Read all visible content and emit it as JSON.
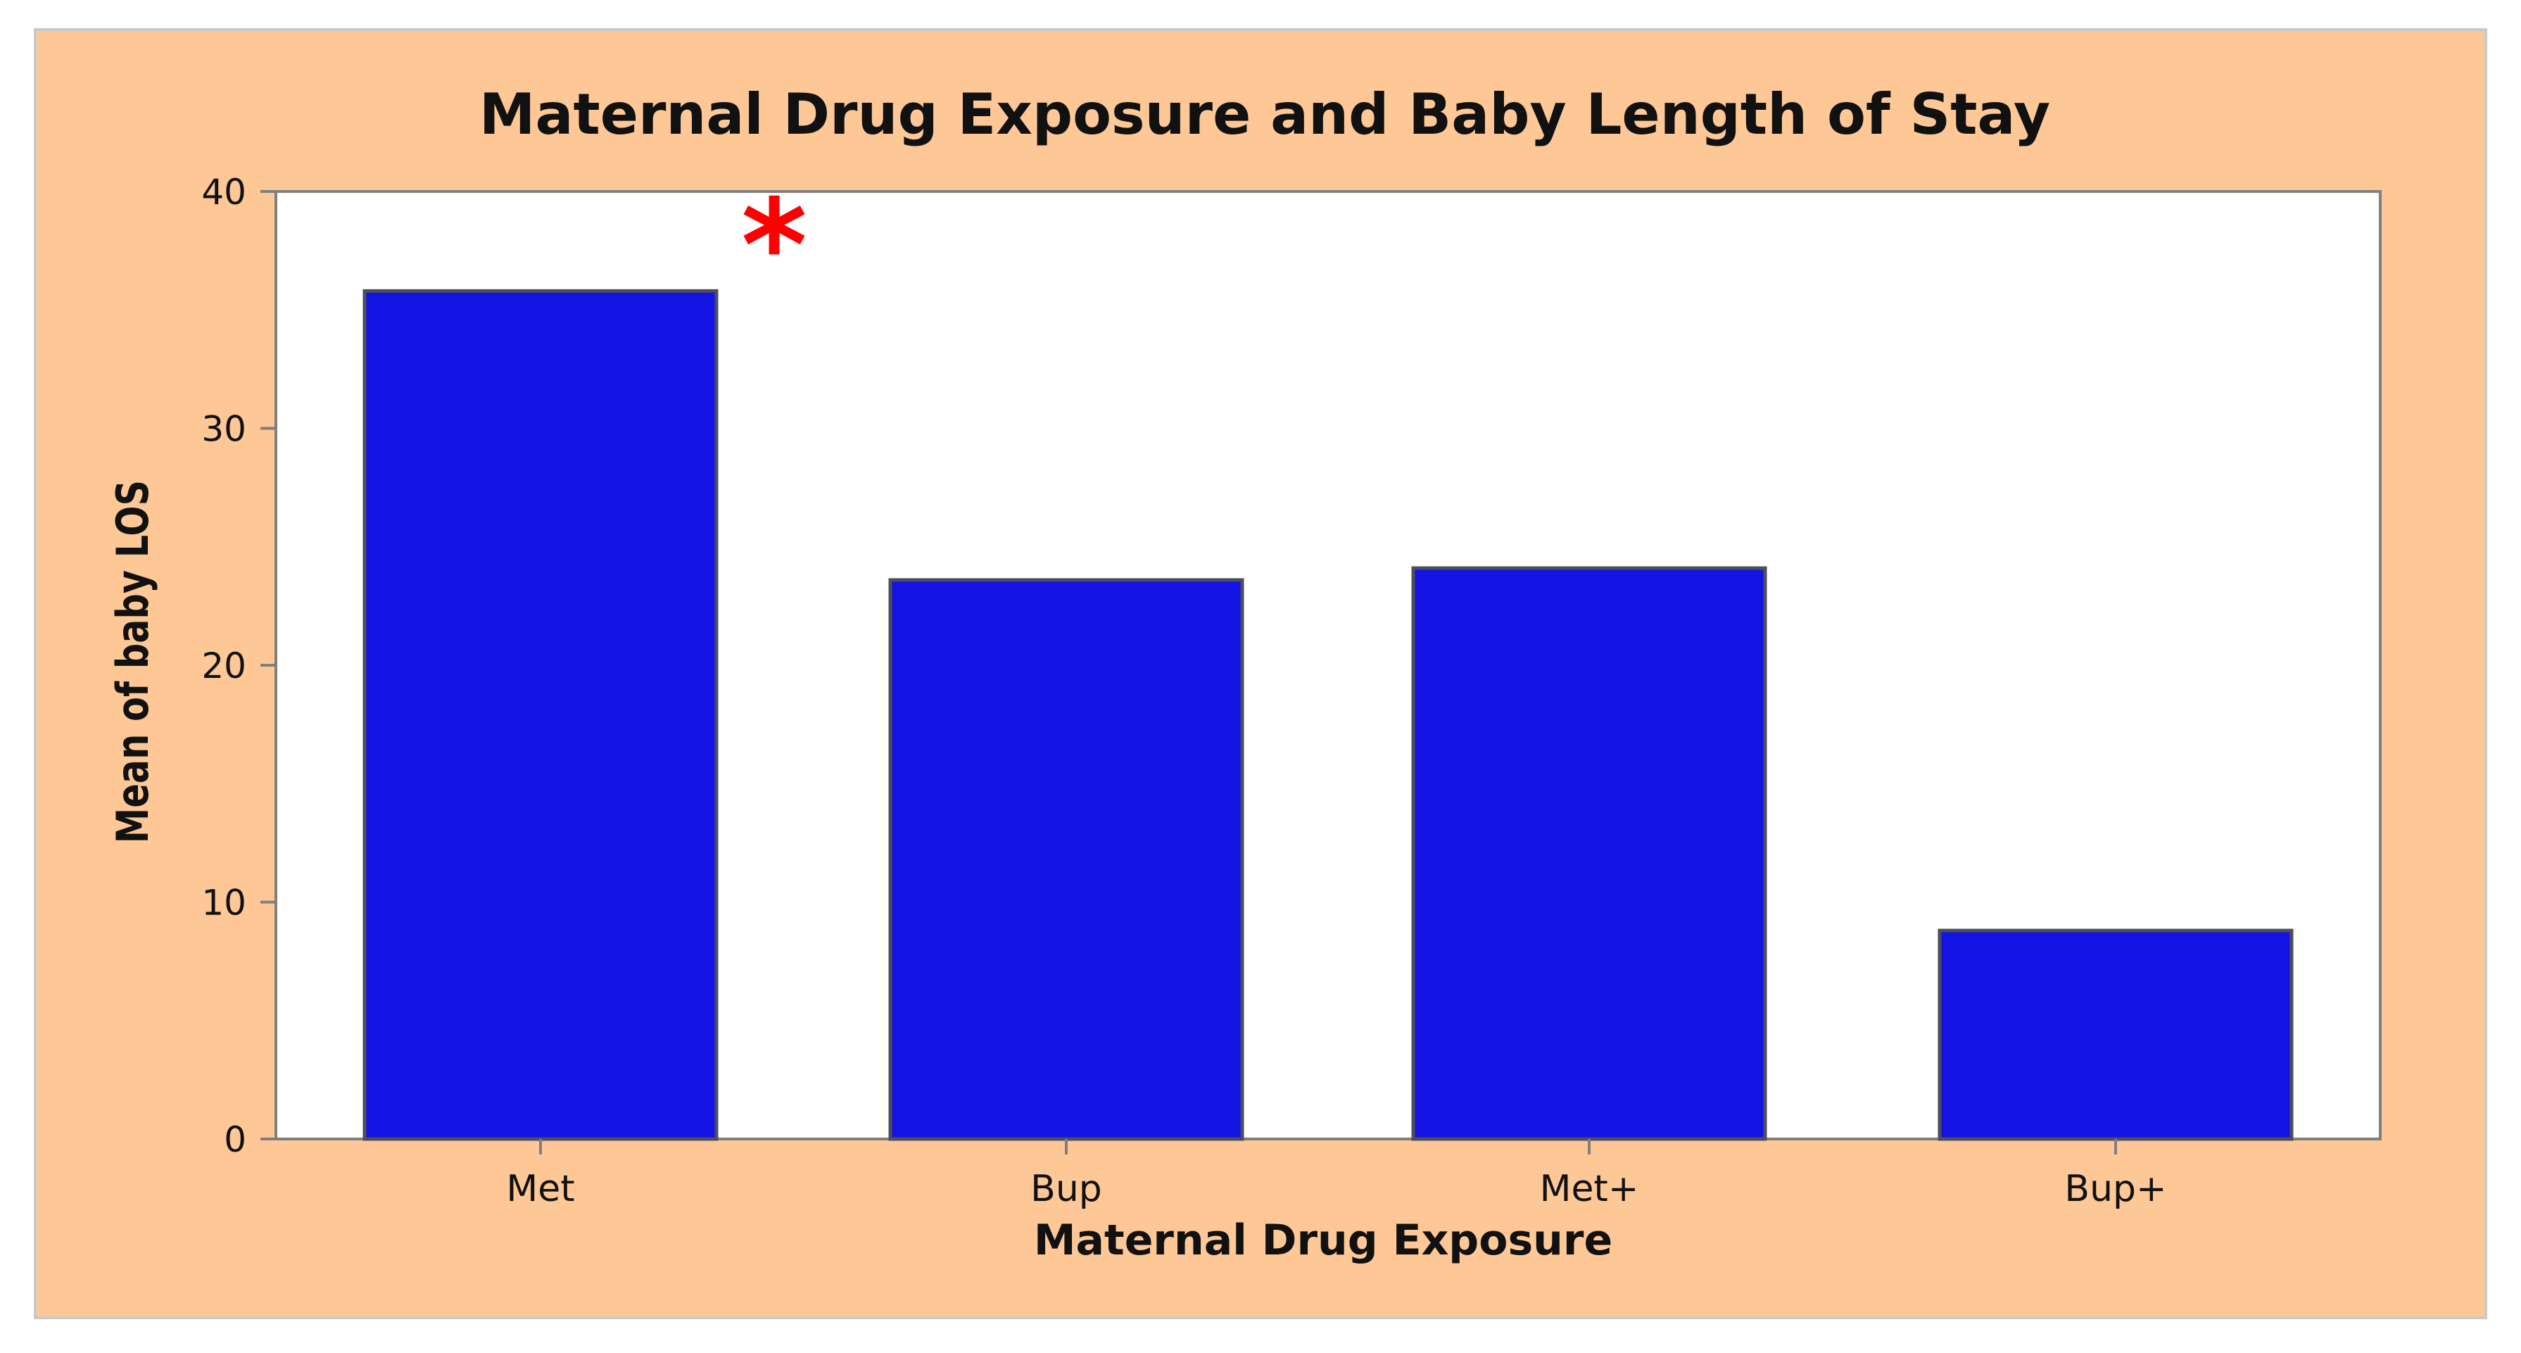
{
  "colors": {
    "page_background": "#ffffff",
    "frame_fill": "#fdc896",
    "frame_border": "#c9c9c9",
    "plot_fill": "#ffffff",
    "plot_border": "#7f7f7f",
    "bar_fill": "#1313e3",
    "bar_border": "#4d4d5e",
    "text": "#111111",
    "significance_mark": "#ff0000"
  },
  "chart_data": {
    "type": "bar",
    "title": "Maternal Drug Exposure and Baby Length of Stay",
    "xlabel": "Maternal Drug Exposure",
    "ylabel": "Mean of baby LOS",
    "categories": [
      "Met",
      "Bup",
      "Met+",
      "Bup+"
    ],
    "values": [
      35.8,
      23.6,
      24.1,
      8.8
    ],
    "ylim": [
      0,
      40
    ],
    "yticks": [
      0,
      10,
      20,
      30,
      40
    ],
    "grid": false,
    "annotations": [
      {
        "text": "*",
        "category": "Met",
        "meaning": "significance marker"
      }
    ]
  }
}
